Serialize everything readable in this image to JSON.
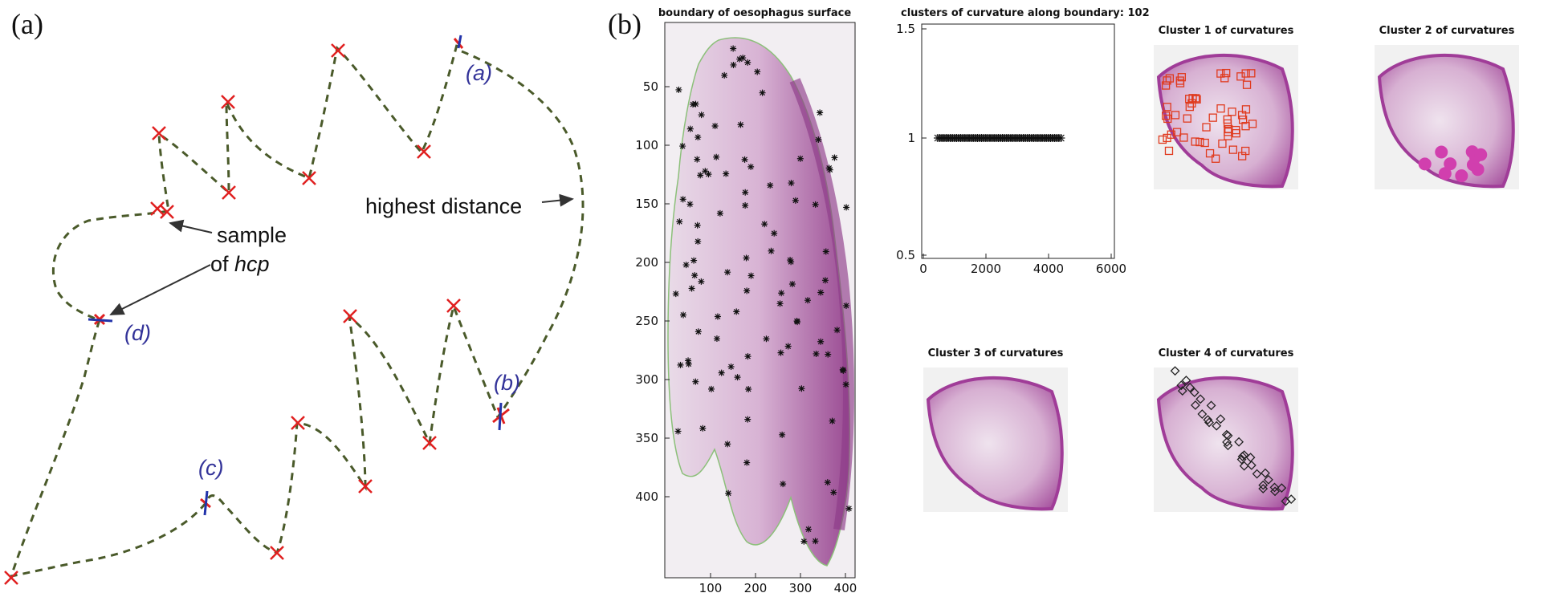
{
  "panel_a": {
    "label": "(a)",
    "highest_distance": "highest distance",
    "sample_line1": "sample",
    "sample_line2_prefix": "of ",
    "sample_line2_italic": "hcp",
    "points": {
      "a": "(a)",
      "b": "(b)",
      "c": "(c)",
      "d": "(d)"
    },
    "colors": {
      "contour": "#4a5a2a",
      "cross": "#e02020",
      "hcp_marker": "#2233aa",
      "label": "#333399"
    }
  },
  "panel_b": {
    "label": "(b)",
    "boundary_plot": {
      "title": "boundary of oesophagus surface",
      "y_ticks": [
        "50",
        "100",
        "150",
        "200",
        "250",
        "300",
        "350",
        "400"
      ],
      "x_ticks": [
        "100",
        "200",
        "300",
        "400"
      ]
    },
    "cluster_plot": {
      "title": "clusters of curvature along boundary: 102",
      "y_ticks": [
        "1.5",
        "1",
        "0.5"
      ],
      "x_ticks": [
        "0",
        "2000",
        "4000",
        "6000"
      ]
    },
    "clusters": [
      {
        "title": "Cluster 1 of curvatures",
        "marker": "square",
        "marker_color": "#e03a1e"
      },
      {
        "title": "Cluster 2 of curvatures",
        "marker": "dot",
        "marker_color": "#d13fae"
      },
      {
        "title": "Cluster 3 of curvatures",
        "marker": "none",
        "marker_color": ""
      },
      {
        "title": "Cluster 4 of curvatures",
        "marker": "diamond",
        "marker_color": "#222222"
      }
    ]
  }
}
